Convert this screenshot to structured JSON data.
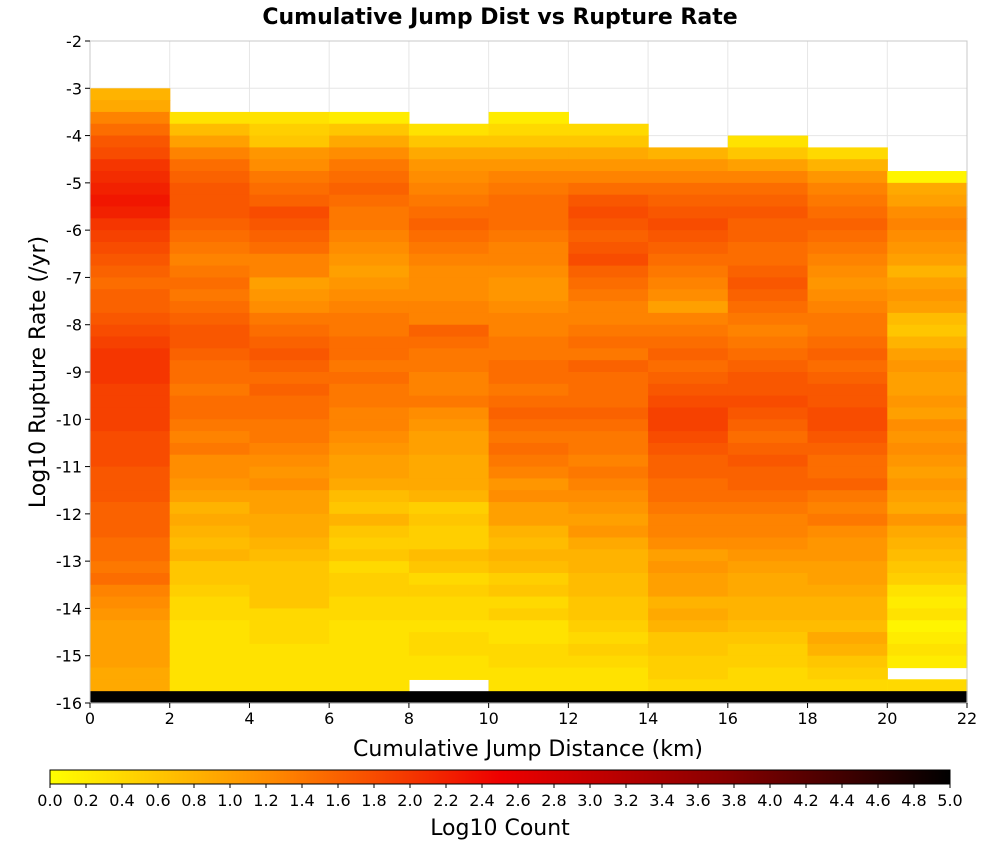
{
  "chart_data": {
    "type": "heatmap",
    "title": "Cumulative Jump Dist vs Rupture Rate",
    "xlabel": "Cumulative Jump Distance (km)",
    "ylabel": "Log10 Rupture Rate (/yr)",
    "xlim": [
      0,
      22
    ],
    "ylim": [
      -16,
      -2
    ],
    "x_ticks": [
      "0",
      "2",
      "4",
      "6",
      "8",
      "10",
      "12",
      "14",
      "16",
      "18",
      "20",
      "22"
    ],
    "y_ticks": [
      "-2",
      "-3",
      "-4",
      "-5",
      "-6",
      "-7",
      "-8",
      "-9",
      "-10",
      "-11",
      "-12",
      "-13",
      "-14",
      "-15",
      "-16"
    ],
    "x_bin_edges": [
      0,
      2,
      4,
      6,
      8,
      10,
      12,
      14,
      16,
      18,
      20,
      22
    ],
    "y_bin_width": 0.25,
    "columns": [
      {
        "x_range": [
          0,
          2
        ],
        "top": -3.0,
        "bottom": -15.75,
        "row_values": [
          0.8,
          0.9,
          1.3,
          1.5,
          1.7,
          1.8,
          2.0,
          2.1,
          2.2,
          2.3,
          2.2,
          2.0,
          1.9,
          1.8,
          1.7,
          1.6,
          1.5,
          1.6,
          1.6,
          1.7,
          1.8,
          1.9,
          2.0,
          2.0,
          2.0,
          1.9,
          1.9,
          1.9,
          1.9,
          1.8,
          1.8,
          1.8,
          1.7,
          1.7,
          1.7,
          1.6,
          1.6,
          1.6,
          1.5,
          1.5,
          1.4,
          1.5,
          1.3,
          1.2,
          1.1,
          1.0,
          1.0,
          1.0,
          1.0,
          0.9,
          0.9
        ]
      },
      {
        "x_range": [
          2,
          4
        ],
        "top": -3.5,
        "bottom": -15.75,
        "row_values": [
          0.3,
          0.7,
          1.0,
          1.3,
          1.5,
          1.6,
          1.7,
          1.7,
          1.7,
          1.6,
          1.5,
          1.4,
          1.3,
          1.4,
          1.5,
          1.4,
          1.5,
          1.6,
          1.7,
          1.7,
          1.6,
          1.5,
          1.5,
          1.4,
          1.5,
          1.5,
          1.4,
          1.3,
          1.4,
          1.2,
          1.2,
          1.1,
          1.0,
          0.8,
          0.9,
          0.8,
          0.7,
          0.8,
          0.6,
          0.6,
          0.5,
          0.4,
          0.4,
          0.3,
          0.3,
          0.3,
          0.3,
          0.3,
          0.3
        ]
      },
      {
        "x_range": [
          4,
          6
        ],
        "top": -3.5,
        "bottom": -15.75,
        "row_values": [
          0.3,
          0.5,
          0.6,
          1.1,
          1.2,
          1.4,
          1.5,
          1.6,
          1.8,
          1.7,
          1.6,
          1.5,
          1.3,
          1.3,
          1.0,
          1.1,
          1.2,
          1.4,
          1.5,
          1.6,
          1.7,
          1.6,
          1.5,
          1.6,
          1.5,
          1.5,
          1.4,
          1.4,
          1.3,
          1.2,
          1.1,
          1.2,
          1.0,
          1.0,
          0.9,
          0.9,
          0.8,
          0.7,
          0.6,
          0.6,
          0.6,
          0.6,
          0.4,
          0.4,
          0.4,
          0.3,
          0.3,
          0.3,
          0.3
        ]
      },
      {
        "x_range": [
          6,
          8
        ],
        "top": -3.5,
        "bottom": -15.75,
        "row_values": [
          0.2,
          0.6,
          0.9,
          1.2,
          1.4,
          1.5,
          1.6,
          1.5,
          1.4,
          1.4,
          1.3,
          1.2,
          1.1,
          1.0,
          1.1,
          1.2,
          1.3,
          1.4,
          1.4,
          1.5,
          1.5,
          1.4,
          1.5,
          1.4,
          1.4,
          1.3,
          1.3,
          1.2,
          1.1,
          1.0,
          1.0,
          0.9,
          0.7,
          0.6,
          0.8,
          0.6,
          0.5,
          0.6,
          0.4,
          0.5,
          0.5,
          0.4,
          0.4,
          0.3,
          0.3,
          0.3,
          0.3,
          0.3,
          0.3
        ]
      },
      {
        "x_range": [
          8,
          10
        ],
        "top": -3.75,
        "bottom": -15.5,
        "row_values": [
          0.3,
          0.6,
          0.9,
          1.1,
          1.2,
          1.3,
          1.4,
          1.5,
          1.6,
          1.5,
          1.4,
          1.3,
          1.2,
          1.2,
          1.2,
          1.3,
          1.3,
          1.6,
          1.5,
          1.4,
          1.4,
          1.3,
          1.3,
          1.4,
          1.2,
          1.1,
          1.0,
          1.0,
          0.9,
          0.9,
          0.9,
          0.8,
          0.5,
          0.6,
          0.5,
          0.5,
          0.7,
          0.6,
          0.4,
          0.5,
          0.4,
          0.4,
          0.3,
          0.4,
          0.4,
          0.3,
          0.3
        ]
      },
      {
        "x_range": [
          10,
          12
        ],
        "top": -3.5,
        "bottom": -15.75,
        "row_values": [
          0.2,
          0.4,
          0.6,
          0.9,
          1.1,
          1.3,
          1.4,
          1.5,
          1.5,
          1.5,
          1.4,
          1.3,
          1.3,
          1.2,
          1.1,
          1.1,
          1.2,
          1.3,
          1.3,
          1.4,
          1.4,
          1.5,
          1.5,
          1.4,
          1.5,
          1.6,
          1.5,
          1.4,
          1.5,
          1.4,
          1.3,
          1.1,
          1.2,
          1.0,
          1.0,
          0.8,
          0.7,
          0.8,
          0.7,
          0.5,
          0.6,
          0.4,
          0.5,
          0.3,
          0.3,
          0.4,
          0.4,
          0.3,
          0.3
        ]
      },
      {
        "x_range": [
          12,
          14
        ],
        "top": -3.75,
        "bottom": -15.75,
        "row_values": [
          0.4,
          0.6,
          0.9,
          1.1,
          1.3,
          1.5,
          1.7,
          1.8,
          1.7,
          1.6,
          1.7,
          1.8,
          1.6,
          1.5,
          1.4,
          1.3,
          1.3,
          1.4,
          1.5,
          1.4,
          1.6,
          1.5,
          1.5,
          1.5,
          1.6,
          1.5,
          1.4,
          1.4,
          1.3,
          1.4,
          1.3,
          1.2,
          1.1,
          1.0,
          1.1,
          0.9,
          0.8,
          0.8,
          0.7,
          0.7,
          0.6,
          0.6,
          0.5,
          0.4,
          0.5,
          0.4,
          0.3,
          0.3
        ]
      },
      {
        "x_range": [
          14,
          16
        ],
        "top": -4.25,
        "bottom": -15.75,
        "row_values": [
          0.8,
          1.1,
          1.3,
          1.5,
          1.6,
          1.7,
          1.8,
          1.7,
          1.6,
          1.5,
          1.4,
          1.3,
          1.2,
          1.0,
          1.3,
          1.4,
          1.5,
          1.6,
          1.5,
          1.6,
          1.7,
          1.8,
          1.9,
          1.9,
          1.8,
          1.7,
          1.6,
          1.6,
          1.5,
          1.5,
          1.4,
          1.3,
          1.3,
          1.2,
          1.0,
          1.1,
          1.0,
          1.0,
          0.8,
          0.9,
          0.8,
          0.6,
          0.6,
          0.5,
          0.5,
          0.4
        ]
      },
      {
        "x_range": [
          16,
          18
        ],
        "top": -4.0,
        "bottom": -15.75,
        "row_values": [
          0.3,
          0.6,
          1.0,
          1.3,
          1.5,
          1.6,
          1.7,
          1.6,
          1.6,
          1.5,
          1.5,
          1.6,
          1.7,
          1.6,
          1.5,
          1.4,
          1.3,
          1.4,
          1.5,
          1.6,
          1.7,
          1.7,
          1.8,
          1.7,
          1.6,
          1.5,
          1.6,
          1.7,
          1.6,
          1.6,
          1.5,
          1.4,
          1.3,
          1.3,
          1.2,
          1.1,
          1.0,
          0.9,
          0.9,
          0.8,
          0.8,
          0.7,
          0.6,
          0.5,
          0.5,
          0.4,
          0.4
        ]
      },
      {
        "x_range": [
          18,
          20
        ],
        "top": -4.25,
        "bottom": -15.75,
        "row_values": [
          0.4,
          0.8,
          1.1,
          1.3,
          1.4,
          1.5,
          1.6,
          1.5,
          1.4,
          1.3,
          1.2,
          1.1,
          1.2,
          1.3,
          1.4,
          1.4,
          1.5,
          1.6,
          1.5,
          1.6,
          1.7,
          1.7,
          1.8,
          1.8,
          1.7,
          1.6,
          1.5,
          1.5,
          1.6,
          1.4,
          1.3,
          1.4,
          1.2,
          1.1,
          1.1,
          1.0,
          1.0,
          0.9,
          0.8,
          0.8,
          0.7,
          0.9,
          0.8,
          0.6,
          0.5,
          0.4
        ]
      },
      {
        "x_range": [
          20,
          22
        ],
        "top": -4.75,
        "bottom": -15.75,
        "row_values": [
          0.1,
          0.9,
          1.0,
          1.2,
          1.3,
          1.2,
          1.1,
          1.0,
          0.8,
          1.0,
          1.1,
          1.0,
          0.7,
          0.6,
          0.8,
          1.0,
          1.1,
          1.0,
          1.0,
          1.1,
          1.0,
          1.2,
          1.1,
          1.2,
          1.1,
          1.0,
          1.1,
          1.0,
          0.9,
          1.1,
          0.9,
          0.8,
          0.7,
          0.6,
          0.5,
          0.3,
          0.2,
          0.3,
          0.1,
          0.2,
          0.3,
          0.2,
          0.1
        ]
      }
    ],
    "gap_cells": [
      {
        "x_range": [
          8,
          10
        ],
        "y": -15.625
      },
      {
        "x_range": [
          20,
          22
        ],
        "y": -15.375
      }
    ],
    "extra_cells": [
      {
        "x_range": [
          20,
          22
        ],
        "y": -15.625,
        "value": 0.4
      }
    ],
    "bottom_row": {
      "y_range": [
        -16,
        -15.75
      ],
      "x_range": [
        0,
        22
      ],
      "value": 5.0
    },
    "colorbar": {
      "label": "Log10 Count",
      "range": [
        0.0,
        5.0
      ],
      "ticks": [
        "0.0",
        "0.2",
        "0.4",
        "0.6",
        "0.8",
        "1.0",
        "1.2",
        "1.4",
        "1.6",
        "1.8",
        "2.0",
        "2.2",
        "2.4",
        "2.6",
        "2.8",
        "3.0",
        "3.2",
        "3.4",
        "3.6",
        "3.8",
        "4.0",
        "4.2",
        "4.4",
        "4.6",
        "4.8",
        "5.0"
      ],
      "colors": [
        "#ffff00",
        "#ff8800",
        "#ee0000",
        "#880000",
        "#000000"
      ]
    },
    "grid": true,
    "legend": "none"
  }
}
